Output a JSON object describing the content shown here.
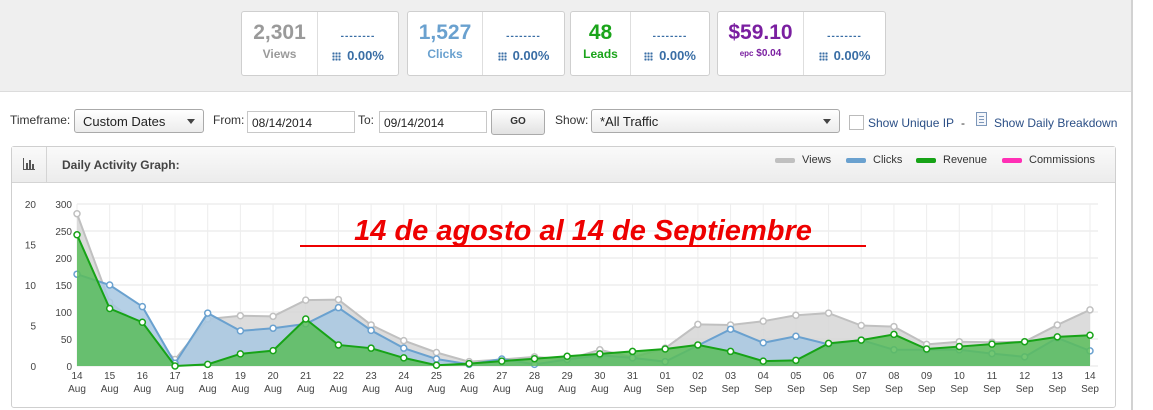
{
  "stats": {
    "views": {
      "value": "2,301",
      "label": "Views",
      "dash": "--------",
      "pct": "0.00%",
      "color": "#9a9a9a"
    },
    "clicks": {
      "value": "1,527",
      "label": "Clicks",
      "dash": "--------",
      "pct": "0.00%",
      "color": "#6aa1cf"
    },
    "leads": {
      "value": "48",
      "label": "Leads",
      "dash": "--------",
      "pct": "0.00%",
      "color": "#1aa41a"
    },
    "epc": {
      "value": "$59.10",
      "sub_label": "epc",
      "sub_value": "$0.04",
      "dash": "--------",
      "pct": "0.00%",
      "color": "#7a1fa0"
    }
  },
  "filters": {
    "timeframe_label": "Timeframe:",
    "timeframe_value": "Custom Dates",
    "from_label": "From:",
    "from_value": "08/14/2014",
    "to_label": "To:",
    "to_value": "09/14/2014",
    "go_label": "GO",
    "show_label": "Show:",
    "show_value": "*All Traffic",
    "unique_ip_label": "Show Unique IP",
    "separator": "-",
    "daily_breakdown_label": "Show Daily Breakdown"
  },
  "panel": {
    "title": "Daily Activity Graph:"
  },
  "chart_data": {
    "type": "area",
    "annotation": "14 de agosto al 14 de Septiembre",
    "annotation_color": "#ee0000",
    "x_top": [
      "14",
      "15",
      "16",
      "17",
      "18",
      "19",
      "20",
      "21",
      "22",
      "23",
      "24",
      "25",
      "26",
      "27",
      "28",
      "29",
      "30",
      "31",
      "01",
      "02",
      "03",
      "04",
      "05",
      "06",
      "07",
      "08",
      "09",
      "10",
      "11",
      "12",
      "13",
      "14"
    ],
    "x_bottom": [
      "Aug",
      "Aug",
      "Aug",
      "Aug",
      "Aug",
      "Aug",
      "Aug",
      "Aug",
      "Aug",
      "Aug",
      "Aug",
      "Aug",
      "Aug",
      "Aug",
      "Aug",
      "Aug",
      "Aug",
      "Aug",
      "Sep",
      "Sep",
      "Sep",
      "Sep",
      "Sep",
      "Sep",
      "Sep",
      "Sep",
      "Sep",
      "Sep",
      "Sep",
      "Sep",
      "Sep",
      "Sep"
    ],
    "y_left_ticks": [
      "20",
      "15",
      "10",
      "5",
      "0"
    ],
    "y_left_range": [
      0,
      20
    ],
    "y_right_ticks": [
      "300",
      "250",
      "200",
      "150",
      "100",
      "50",
      "0"
    ],
    "y_right_range": [
      0,
      300
    ],
    "grid": true,
    "legend_position": "top-right",
    "series": [
      {
        "name": "Views",
        "axis": "right",
        "color": "#c0c0c0",
        "fill": "#d6d6d6",
        "values": [
          282,
          118,
          72,
          12,
          87,
          93,
          92,
          122,
          123,
          76,
          47,
          25,
          8,
          12,
          17,
          12,
          30,
          16,
          33,
          77,
          76,
          83,
          94,
          98,
          75,
          73,
          40,
          45,
          44,
          45,
          76,
          104
        ]
      },
      {
        "name": "Clicks",
        "axis": "right",
        "color": "#6aa1cf",
        "fill": "#a8c8e2",
        "values": [
          170,
          150,
          110,
          5,
          98,
          65,
          70,
          78,
          108,
          66,
          33,
          13,
          3,
          13,
          3,
          12,
          20,
          15,
          8,
          38,
          68,
          43,
          55,
          40,
          48,
          30,
          30,
          30,
          23,
          17,
          52,
          28
        ]
      },
      {
        "name": "Revenue",
        "axis": "left",
        "color": "#17a317",
        "fill": "#5bbd5b",
        "values": [
          16.2,
          7.1,
          5.4,
          0,
          0.2,
          1.5,
          1.9,
          5.8,
          2.6,
          2.2,
          1.0,
          0.1,
          0.3,
          0.6,
          0.9,
          1.2,
          1.5,
          1.8,
          2.1,
          2.6,
          1.8,
          0.6,
          0.7,
          2.8,
          3.2,
          3.9,
          2.1,
          2.4,
          2.7,
          3.0,
          3.6,
          3.8
        ]
      },
      {
        "name": "Commissions",
        "axis": "left",
        "color": "#ff2fb5",
        "fill": "none",
        "values": []
      }
    ]
  }
}
